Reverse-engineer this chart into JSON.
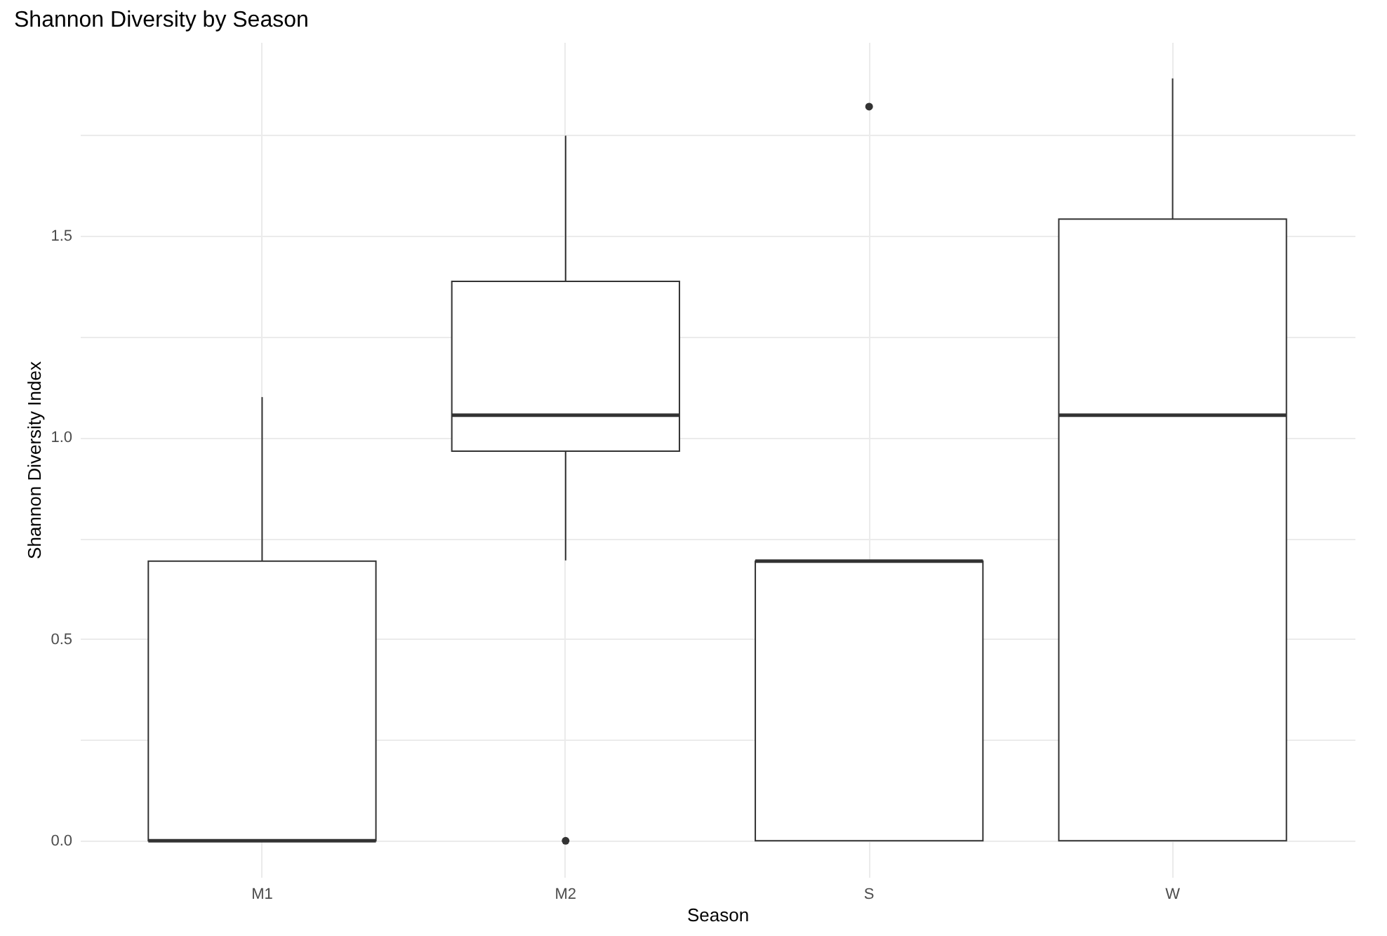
{
  "chart_data": {
    "type": "box",
    "title": "Shannon Diversity by Season",
    "xlabel": "Season",
    "ylabel": "Shannon Diversity Index",
    "categories": [
      "M1",
      "M2",
      "S",
      "W"
    ],
    "boxes": [
      {
        "low": 0,
        "q1": 0,
        "median": 0,
        "q3": 0.693,
        "high": 1.1
      },
      {
        "low": 0.695,
        "q1": 0.966,
        "median": 1.055,
        "q3": 1.387,
        "high": 1.748,
        "outliers": [
          0
        ]
      },
      {
        "low": 0,
        "q1": 0,
        "median": 0.693,
        "q3": 0.693,
        "high": 0.693,
        "outliers": [
          1.82
        ]
      },
      {
        "low": 0,
        "q1": 0,
        "median": 1.055,
        "q3": 1.541,
        "high": 1.89
      }
    ],
    "ylim": [
      -0.09,
      1.98
    ],
    "yticks": [
      {
        "value": 0,
        "label": "0.0"
      },
      {
        "value": 0.25,
        "label": null
      },
      {
        "value": 0.5,
        "label": "0.5"
      },
      {
        "value": 0.75,
        "label": null
      },
      {
        "value": 1,
        "label": "1.0"
      },
      {
        "value": 1.25,
        "label": null
      },
      {
        "value": 1.5,
        "label": "1.5"
      },
      {
        "value": 1.75,
        "label": null
      }
    ],
    "grid": true
  }
}
